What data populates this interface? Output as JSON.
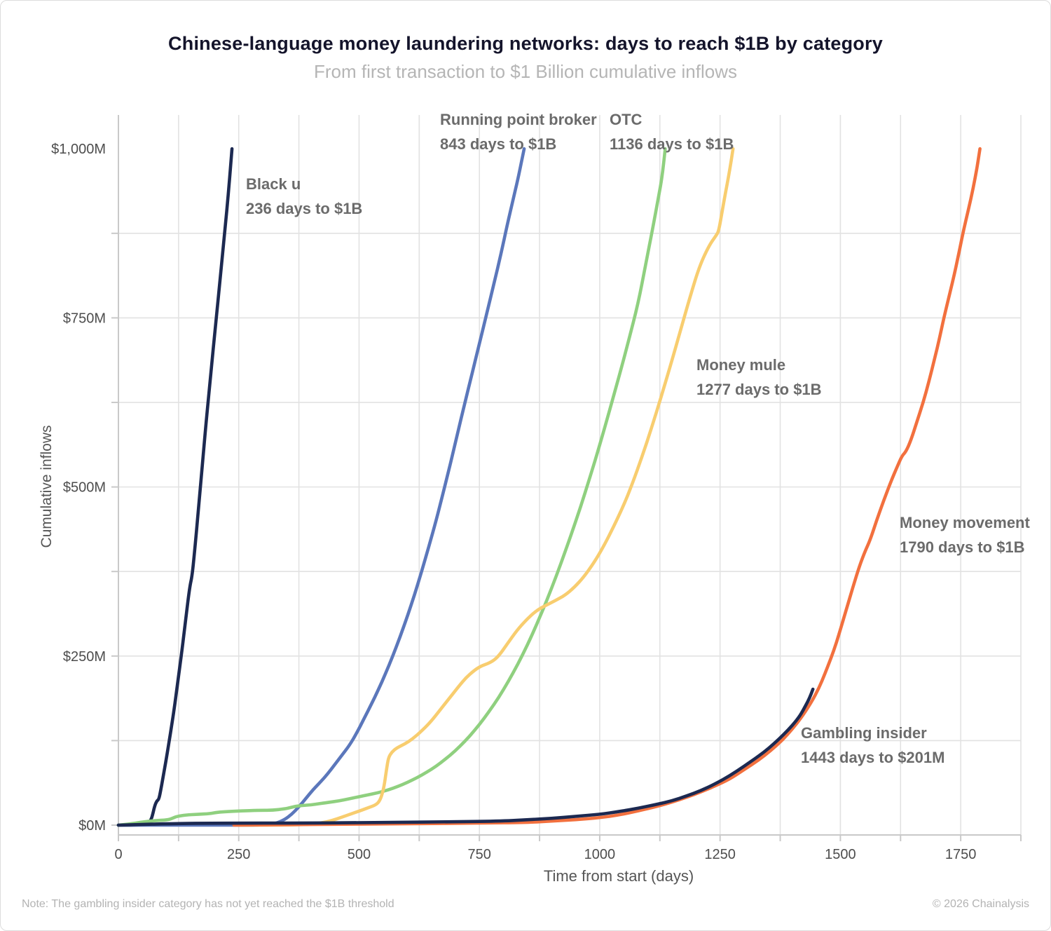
{
  "title": "Chinese-language money laundering networks: days to reach $1B by category",
  "subtitle": "From first transaction to $1 Billion cumulative inflows",
  "footer": {
    "note": "Note: The gambling insider category has not yet reached the $1B threshold",
    "copyright": "© 2026 Chainalysis"
  },
  "colors": {
    "navy": "#1c2951",
    "blue": "#5b77bb",
    "green": "#8fd07f",
    "yellow": "#f8cd6f",
    "orange": "#f2703e",
    "grid": "#e2e2e2",
    "axis": "#c9c9c9",
    "tick_label": "#4d4d4d"
  },
  "chart_data": {
    "type": "line",
    "title": "Chinese-language money laundering networks: days to reach $1B by category",
    "subtitle": "From first transaction to $1 Billion cumulative inflows",
    "xlabel": "Time from start (days)",
    "ylabel": "Cumulative inflows",
    "xlim": [
      0,
      1875
    ],
    "ylim": [
      0,
      1050
    ],
    "grid": true,
    "minor_step_x": 125,
    "minor_step_y": 125,
    "x_ticks": [
      {
        "value": 0,
        "label": "0"
      },
      {
        "value": 250,
        "label": "250"
      },
      {
        "value": 500,
        "label": "500"
      },
      {
        "value": 750,
        "label": "750"
      },
      {
        "value": 1000,
        "label": "1000"
      },
      {
        "value": 1250,
        "label": "1250"
      },
      {
        "value": 1500,
        "label": "1500"
      },
      {
        "value": 1750,
        "label": "1750"
      }
    ],
    "y_ticks": [
      {
        "value": 0,
        "label": "$0M"
      },
      {
        "value": 250,
        "label": "$250M"
      },
      {
        "value": 500,
        "label": "$500M"
      },
      {
        "value": 750,
        "label": "$750M"
      },
      {
        "value": 1000,
        "label": "$1,000M"
      }
    ],
    "series": [
      {
        "id": "black-u",
        "color": "#1c2951",
        "annotation": {
          "name": "Black u",
          "detail": "236 days to $1B"
        },
        "days_to_1b": 236,
        "points": [
          [
            0,
            0
          ],
          [
            40,
            0
          ],
          [
            55,
            1
          ],
          [
            62,
            3
          ],
          [
            68,
            8
          ],
          [
            72,
            18
          ],
          [
            76,
            30
          ],
          [
            80,
            36
          ],
          [
            84,
            38
          ],
          [
            88,
            52
          ],
          [
            93,
            72
          ],
          [
            100,
            100
          ],
          [
            108,
            135
          ],
          [
            116,
            172
          ],
          [
            124,
            215
          ],
          [
            132,
            258
          ],
          [
            140,
            305
          ],
          [
            148,
            352
          ],
          [
            153,
            368
          ],
          [
            158,
            402
          ],
          [
            166,
            465
          ],
          [
            174,
            530
          ],
          [
            182,
            594
          ],
          [
            192,
            668
          ],
          [
            202,
            740
          ],
          [
            212,
            812
          ],
          [
            221,
            878
          ],
          [
            229,
            938
          ],
          [
            236,
            1000
          ]
        ]
      },
      {
        "id": "running-point-broker",
        "color": "#5b77bb",
        "annotation": {
          "name": "Running point broker",
          "detail": "843 days to $1B"
        },
        "days_to_1b": 843,
        "points": [
          [
            0,
            0
          ],
          [
            200,
            0
          ],
          [
            300,
            0
          ],
          [
            325,
            2
          ],
          [
            345,
            8
          ],
          [
            360,
            16
          ],
          [
            375,
            27
          ],
          [
            390,
            40
          ],
          [
            405,
            53
          ],
          [
            420,
            64
          ],
          [
            435,
            76
          ],
          [
            450,
            90
          ],
          [
            465,
            104
          ],
          [
            480,
            118
          ],
          [
            495,
            136
          ],
          [
            510,
            157
          ],
          [
            525,
            178
          ],
          [
            540,
            200
          ],
          [
            555,
            224
          ],
          [
            570,
            250
          ],
          [
            585,
            278
          ],
          [
            600,
            308
          ],
          [
            615,
            340
          ],
          [
            630,
            375
          ],
          [
            645,
            412
          ],
          [
            660,
            450
          ],
          [
            675,
            492
          ],
          [
            690,
            535
          ],
          [
            705,
            580
          ],
          [
            720,
            625
          ],
          [
            735,
            668
          ],
          [
            750,
            712
          ],
          [
            765,
            756
          ],
          [
            780,
            800
          ],
          [
            795,
            845
          ],
          [
            808,
            888
          ],
          [
            820,
            925
          ],
          [
            830,
            955
          ],
          [
            843,
            1000
          ]
        ]
      },
      {
        "id": "otc",
        "color": "#8fd07f",
        "annotation": {
          "name": "OTC",
          "detail": "1136 days to $1B"
        },
        "days_to_1b": 1136,
        "points": [
          [
            0,
            0
          ],
          [
            25,
            2
          ],
          [
            45,
            4
          ],
          [
            65,
            6
          ],
          [
            85,
            7
          ],
          [
            105,
            8
          ],
          [
            115,
            11
          ],
          [
            122,
            13
          ],
          [
            140,
            15
          ],
          [
            165,
            16
          ],
          [
            190,
            17
          ],
          [
            205,
            19
          ],
          [
            225,
            20
          ],
          [
            255,
            21
          ],
          [
            290,
            22
          ],
          [
            320,
            22
          ],
          [
            345,
            24
          ],
          [
            358,
            26
          ],
          [
            368,
            28
          ],
          [
            382,
            29
          ],
          [
            400,
            30
          ],
          [
            420,
            32
          ],
          [
            440,
            34
          ],
          [
            460,
            36
          ],
          [
            480,
            39
          ],
          [
            500,
            42
          ],
          [
            520,
            45
          ],
          [
            540,
            48
          ],
          [
            560,
            52
          ],
          [
            580,
            57
          ],
          [
            600,
            63
          ],
          [
            620,
            70
          ],
          [
            640,
            78
          ],
          [
            660,
            87
          ],
          [
            680,
            98
          ],
          [
            700,
            110
          ],
          [
            720,
            124
          ],
          [
            740,
            140
          ],
          [
            760,
            158
          ],
          [
            780,
            178
          ],
          [
            800,
            200
          ],
          [
            820,
            225
          ],
          [
            840,
            252
          ],
          [
            860,
            282
          ],
          [
            880,
            315
          ],
          [
            900,
            350
          ],
          [
            920,
            388
          ],
          [
            940,
            428
          ],
          [
            960,
            470
          ],
          [
            980,
            515
          ],
          [
            1000,
            562
          ],
          [
            1020,
            612
          ],
          [
            1040,
            663
          ],
          [
            1060,
            716
          ],
          [
            1080,
            772
          ],
          [
            1095,
            827
          ],
          [
            1110,
            882
          ],
          [
            1122,
            928
          ],
          [
            1130,
            960
          ],
          [
            1136,
            1000
          ]
        ]
      },
      {
        "id": "money-mule",
        "color": "#f8cd6f",
        "annotation": {
          "name": "Money mule",
          "detail": "1277 days to $1B"
        },
        "days_to_1b": 1277,
        "points": [
          [
            250,
            0
          ],
          [
            380,
            0
          ],
          [
            420,
            3
          ],
          [
            445,
            7
          ],
          [
            465,
            12
          ],
          [
            485,
            17
          ],
          [
            505,
            22
          ],
          [
            520,
            26
          ],
          [
            535,
            30
          ],
          [
            543,
            36
          ],
          [
            549,
            48
          ],
          [
            553,
            62
          ],
          [
            557,
            82
          ],
          [
            561,
            100
          ],
          [
            568,
            108
          ],
          [
            578,
            114
          ],
          [
            595,
            120
          ],
          [
            612,
            128
          ],
          [
            628,
            138
          ],
          [
            648,
            152
          ],
          [
            668,
            170
          ],
          [
            688,
            188
          ],
          [
            708,
            206
          ],
          [
            722,
            218
          ],
          [
            738,
            228
          ],
          [
            752,
            235
          ],
          [
            772,
            240
          ],
          [
            788,
            248
          ],
          [
            808,
            268
          ],
          [
            828,
            288
          ],
          [
            848,
            304
          ],
          [
            868,
            317
          ],
          [
            888,
            325
          ],
          [
            908,
            332
          ],
          [
            928,
            340
          ],
          [
            948,
            352
          ],
          [
            968,
            368
          ],
          [
            988,
            388
          ],
          [
            1008,
            412
          ],
          [
            1028,
            440
          ],
          [
            1048,
            470
          ],
          [
            1068,
            505
          ],
          [
            1088,
            545
          ],
          [
            1108,
            588
          ],
          [
            1128,
            634
          ],
          [
            1148,
            682
          ],
          [
            1168,
            732
          ],
          [
            1188,
            782
          ],
          [
            1208,
            828
          ],
          [
            1228,
            858
          ],
          [
            1242,
            872
          ],
          [
            1247,
            878
          ],
          [
            1253,
            902
          ],
          [
            1261,
            934
          ],
          [
            1269,
            964
          ],
          [
            1277,
            1000
          ]
        ]
      },
      {
        "id": "money-movement",
        "color": "#f2703e",
        "annotation": {
          "name": "Money movement",
          "detail": "1790 days to $1B"
        },
        "days_to_1b": 1790,
        "points": [
          [
            240,
            0
          ],
          [
            400,
            1
          ],
          [
            600,
            2
          ],
          [
            750,
            3
          ],
          [
            850,
            4
          ],
          [
            900,
            6
          ],
          [
            950,
            8
          ],
          [
            1000,
            11
          ],
          [
            1040,
            15
          ],
          [
            1080,
            21
          ],
          [
            1120,
            28
          ],
          [
            1150,
            34
          ],
          [
            1180,
            41
          ],
          [
            1210,
            49
          ],
          [
            1240,
            58
          ],
          [
            1270,
            68
          ],
          [
            1300,
            82
          ],
          [
            1330,
            96
          ],
          [
            1355,
            110
          ],
          [
            1380,
            126
          ],
          [
            1400,
            142
          ],
          [
            1420,
            160
          ],
          [
            1440,
            182
          ],
          [
            1455,
            202
          ],
          [
            1468,
            224
          ],
          [
            1480,
            246
          ],
          [
            1492,
            270
          ],
          [
            1502,
            294
          ],
          [
            1512,
            318
          ],
          [
            1526,
            352
          ],
          [
            1540,
            384
          ],
          [
            1552,
            406
          ],
          [
            1562,
            422
          ],
          [
            1575,
            450
          ],
          [
            1590,
            480
          ],
          [
            1605,
            508
          ],
          [
            1618,
            530
          ],
          [
            1628,
            546
          ],
          [
            1636,
            552
          ],
          [
            1646,
            568
          ],
          [
            1658,
            594
          ],
          [
            1672,
            625
          ],
          [
            1684,
            656
          ],
          [
            1696,
            690
          ],
          [
            1706,
            720
          ],
          [
            1715,
            750
          ],
          [
            1727,
            785
          ],
          [
            1738,
            818
          ],
          [
            1748,
            852
          ],
          [
            1756,
            880
          ],
          [
            1766,
            910
          ],
          [
            1776,
            942
          ],
          [
            1784,
            972
          ],
          [
            1790,
            1000
          ]
        ]
      },
      {
        "id": "gambling-insider",
        "color": "#1c2951",
        "annotation": {
          "name": "Gambling insider",
          "detail": "1443 days to $201M"
        },
        "days_to_1b": null,
        "points": [
          [
            0,
            0
          ],
          [
            50,
            1
          ],
          [
            90,
            2
          ],
          [
            200,
            3
          ],
          [
            400,
            3
          ],
          [
            550,
            4
          ],
          [
            700,
            5
          ],
          [
            800,
            6
          ],
          [
            850,
            8
          ],
          [
            900,
            10
          ],
          [
            950,
            13
          ],
          [
            1000,
            16
          ],
          [
            1040,
            20
          ],
          [
            1080,
            25
          ],
          [
            1120,
            31
          ],
          [
            1150,
            36
          ],
          [
            1180,
            43
          ],
          [
            1210,
            51
          ],
          [
            1240,
            61
          ],
          [
            1270,
            73
          ],
          [
            1300,
            87
          ],
          [
            1330,
            102
          ],
          [
            1352,
            114
          ],
          [
            1372,
            127
          ],
          [
            1392,
            141
          ],
          [
            1408,
            154
          ],
          [
            1418,
            164
          ],
          [
            1428,
            177
          ],
          [
            1436,
            188
          ],
          [
            1443,
            201
          ]
        ]
      }
    ]
  }
}
